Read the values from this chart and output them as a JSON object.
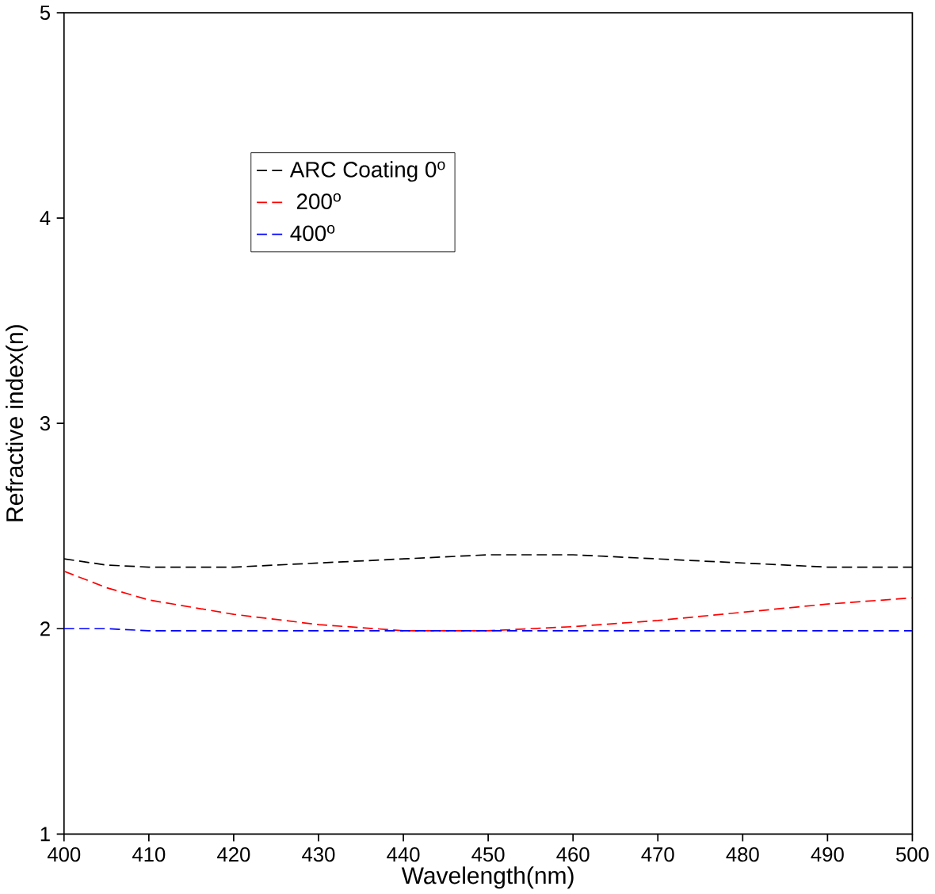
{
  "chart_data": {
    "type": "line",
    "xlabel": "Wavelength(nm)",
    "ylabel": "Refractive index(n)",
    "x": [
      400,
      405,
      410,
      420,
      430,
      440,
      450,
      460,
      470,
      480,
      490,
      500
    ],
    "series": [
      {
        "name": "ARC Coating 0$^{o}$",
        "color": "#000000",
        "values": [
          2.34,
          2.31,
          2.3,
          2.3,
          2.32,
          2.34,
          2.36,
          2.36,
          2.34,
          2.32,
          2.3,
          2.3
        ]
      },
      {
        "name": " 200$^{o}$",
        "color": "#ff0000",
        "values": [
          2.28,
          2.2,
          2.14,
          2.07,
          2.02,
          1.99,
          1.99,
          2.01,
          2.04,
          2.08,
          2.12,
          2.15
        ]
      },
      {
        "name": "400$^{o}$",
        "color": "#0000ff",
        "values": [
          2.0,
          2.0,
          1.99,
          1.99,
          1.99,
          1.99,
          1.99,
          1.99,
          1.99,
          1.99,
          1.99,
          1.99
        ]
      }
    ],
    "xlim": [
      400,
      500
    ],
    "ylim": [
      1,
      5
    ],
    "xticks": [
      400,
      410,
      420,
      430,
      440,
      450,
      460,
      470,
      480,
      490,
      500
    ],
    "yticks": [
      1,
      2,
      3,
      4,
      5
    ],
    "grid": false,
    "legend": "top left",
    "line_style": "dashed",
    "marker": "none"
  }
}
